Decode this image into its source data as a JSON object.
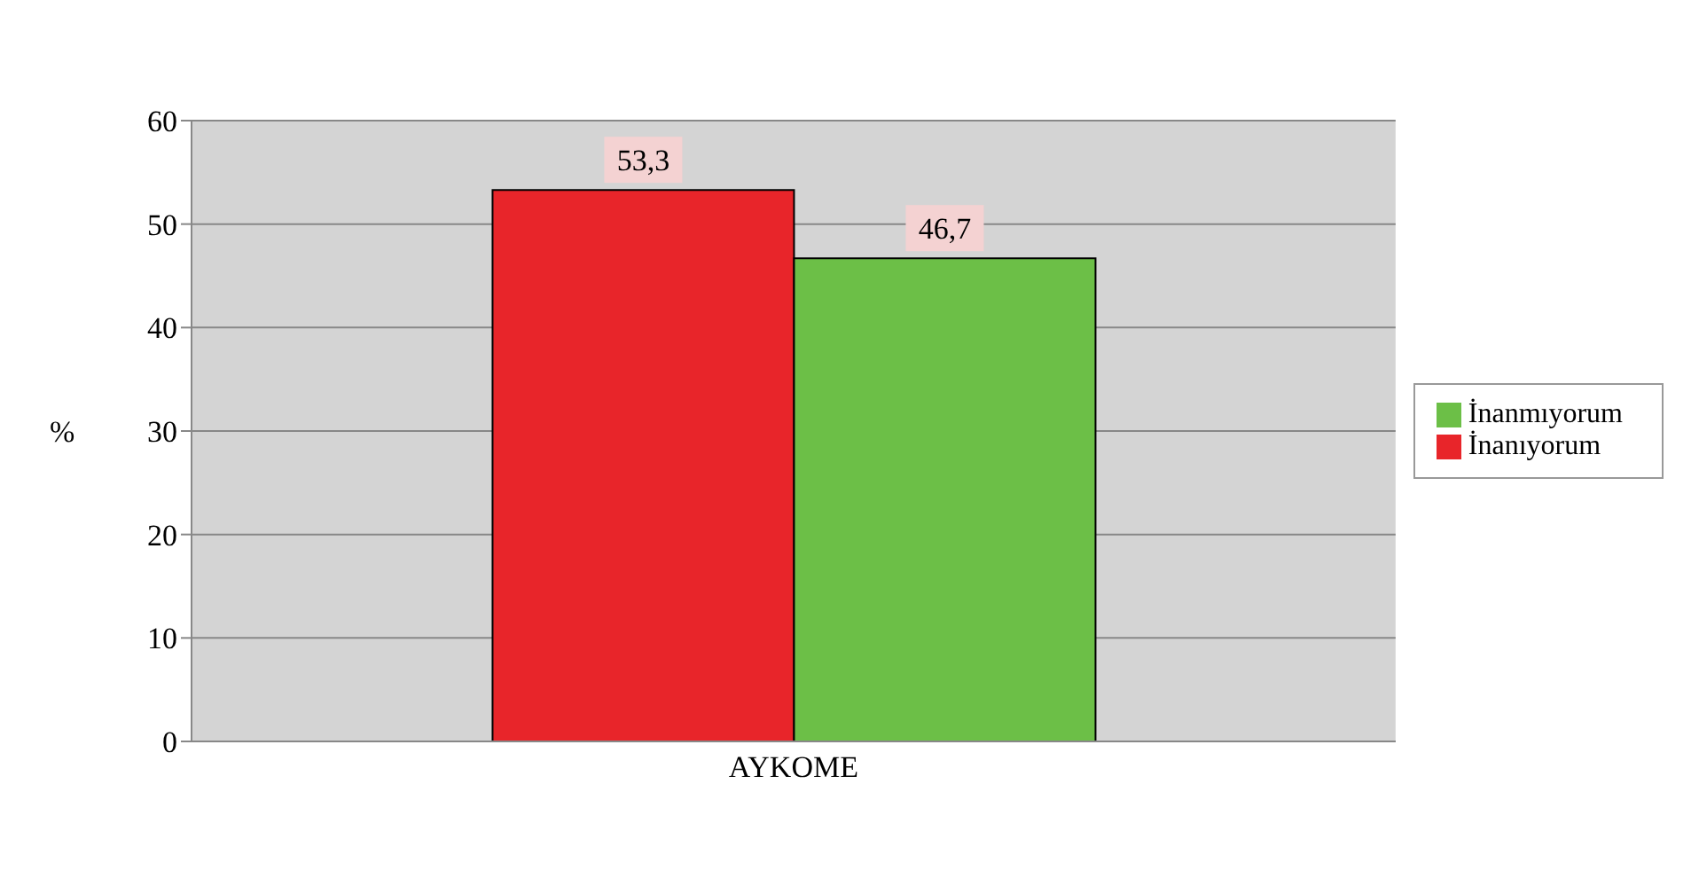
{
  "chart_data": {
    "type": "bar",
    "categories": [
      "AYKOME"
    ],
    "ylabel": "%",
    "ylim": [
      0,
      60
    ],
    "yticks": [
      0,
      10,
      20,
      30,
      40,
      50,
      60
    ],
    "grid": "y",
    "legend": "right",
    "series": [
      {
        "name": "İnanıyorum",
        "color": "#e8252a",
        "values": [
          53.3
        ],
        "value_labels": [
          "53,3"
        ]
      },
      {
        "name": "İnanmıyorum",
        "color": "#6cbf47",
        "values": [
          46.7
        ],
        "value_labels": [
          "46,7"
        ]
      }
    ]
  }
}
